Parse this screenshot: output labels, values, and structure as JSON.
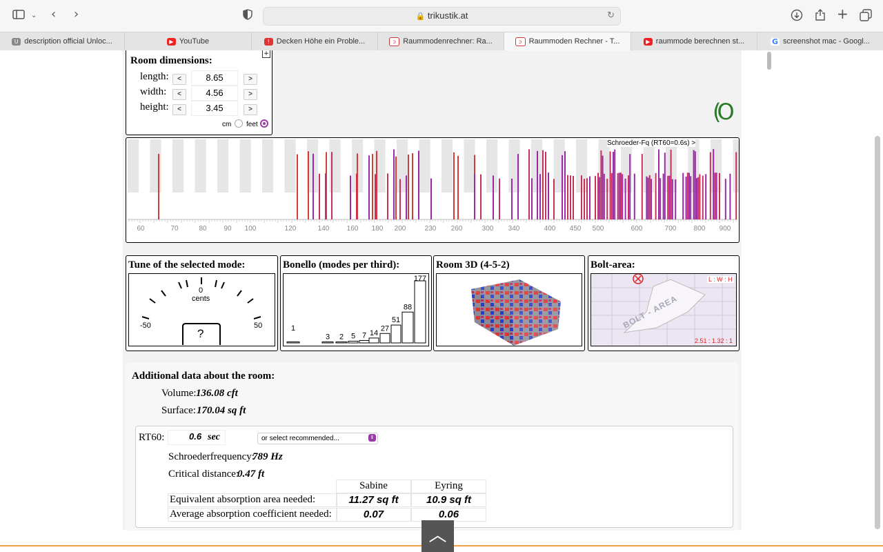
{
  "browser": {
    "url": "trikustik.at",
    "tabs": [
      {
        "label": "description official Unloc...",
        "active": false
      },
      {
        "label": "YouTube",
        "active": false
      },
      {
        "label": "Decken Höhe ein Proble...",
        "active": false
      },
      {
        "label": "Raummodenrechner: Ra...",
        "active": false
      },
      {
        "label": "Raummoden Rechner - T...",
        "active": true
      },
      {
        "label": "raummode berechnen st...",
        "active": false
      },
      {
        "label": "screenshot mac - Googl...",
        "active": false
      }
    ]
  },
  "room_dimensions": {
    "title": "Room dimensions:",
    "length_label": "length:",
    "length_value": "8.65",
    "width_label": "width:",
    "width_value": "4.56",
    "height_label": "height:",
    "height_value": "3.45",
    "dec_label": "<",
    "inc_label": ">",
    "unit_cm": "cm",
    "unit_feet": "feet",
    "selected_unit": "feet"
  },
  "logo_text": "(O",
  "mode_chart": {
    "schroeder_label": "Schroeder-Fq (RT60=0.6s) >",
    "ticks": [
      "60",
      "70",
      "80",
      "90",
      "100",
      "120",
      "140",
      "160",
      "180",
      "200",
      "230",
      "260",
      "300",
      "340",
      "400",
      "450",
      "500",
      "600",
      "700",
      "800",
      "900"
    ]
  },
  "panels": {
    "tune": {
      "title": "Tune of the selected mode:",
      "zero": "0",
      "unit": "cents",
      "min": "-50",
      "max": "50",
      "value": "?"
    },
    "bonello": {
      "title": "Bonello (modes per third):",
      "counts": [
        "1",
        "3",
        "2",
        "5",
        "7",
        "14",
        "27",
        "51",
        "88",
        "177"
      ]
    },
    "room3d": {
      "title": "Room 3D (4-5-2)"
    },
    "bolt": {
      "title": "Bolt-area:",
      "ratio_label": "L : W : H",
      "ratio_value": "2.51 : 1.32 : 1",
      "watermark": "BOLT - AREA"
    }
  },
  "additional": {
    "title": "Additional data about the room:",
    "volume_label": "Volume:",
    "volume_value": "136.08 cft",
    "surface_label": "Surface:",
    "surface_value": "170.04 sq ft",
    "rt60_label": "RT60:",
    "rt60_value": "0.6",
    "rt60_unit": "sec",
    "select_placeholder": "or select recommended...",
    "schroeder_label": "Schroederfrequency:",
    "schroeder_value": "789 Hz",
    "critical_label": "Critical distance:",
    "critical_value": "0.47 ft",
    "table": {
      "col1": "Sabine",
      "col2": "Eyring",
      "row1_label": "Equivalent absorption area needed:",
      "row1_sabine": "11.27 sq ft",
      "row1_eyring": "10.9 sq ft",
      "row2_label": "Average absorption coefficient needed:",
      "row2_sabine": "0.07",
      "row2_eyring": "0.06"
    }
  }
}
